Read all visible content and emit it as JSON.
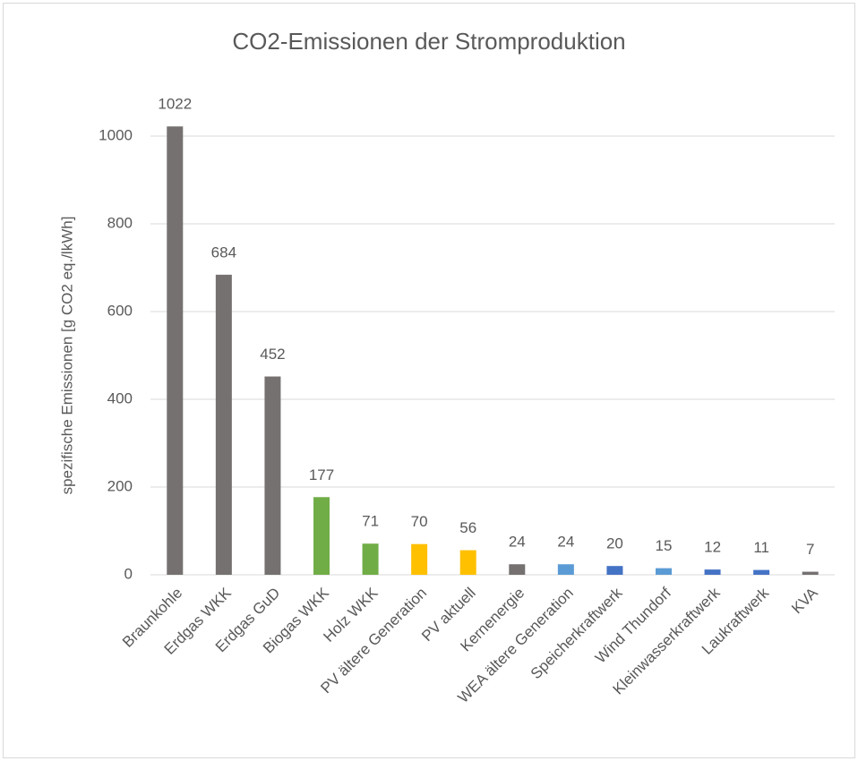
{
  "chart_data": {
    "type": "bar",
    "title": "CO2-Emissionen der Stromproduktion",
    "y_label": "spezifische Emissionen [g CO2 eq./lkWh]",
    "categories": [
      "Braunkohle",
      "Erdgas WKK",
      "Erdgas GuD",
      "Biogas WKK",
      "Holz WKK",
      "PV ältere Generation",
      "PV aktuell",
      "Kernenergie",
      "WEA ältere Generation",
      "Speicherkraftwerk",
      "Wind Thundorf",
      "Kleinwasserkraftwerk",
      "Laukraftwerk",
      "KVA"
    ],
    "values": [
      1022,
      684,
      452,
      177,
      71,
      70,
      56,
      24,
      24,
      20,
      15,
      12,
      11,
      7
    ],
    "colors": [
      "#767171",
      "#767171",
      "#767171",
      "#70ad47",
      "#70ad47",
      "#ffc000",
      "#ffc000",
      "#767171",
      "#5b9bd5",
      "#4472c4",
      "#5b9bd5",
      "#4472c4",
      "#4472c4",
      "#767171"
    ],
    "ylim": [
      0,
      1000
    ],
    "yticks": [
      0,
      200,
      400,
      600,
      800,
      1000
    ],
    "grid": true
  }
}
